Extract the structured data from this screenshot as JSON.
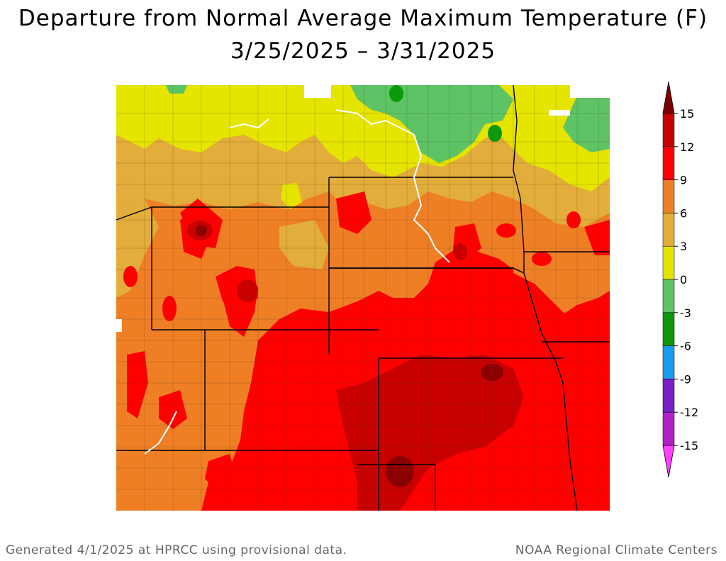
{
  "title": {
    "line1": "Departure from Normal Average Maximum Temperature (F)",
    "line2": "3/25/2025 – 3/31/2025"
  },
  "legend": {
    "ticks": [
      "15",
      "12",
      "9",
      "6",
      "3",
      "0",
      "-3",
      "-6",
      "-9",
      "-12",
      "-15"
    ],
    "bands": [
      {
        "min": 15,
        "max": null,
        "color": "#7a0000"
      },
      {
        "min": 12,
        "max": 15,
        "color": "#c80000"
      },
      {
        "min": 9,
        "max": 12,
        "color": "#ff0000"
      },
      {
        "min": 6,
        "max": 9,
        "color": "#ef7f25"
      },
      {
        "min": 3,
        "max": 6,
        "color": "#e2ad3a"
      },
      {
        "min": 0,
        "max": 3,
        "color": "#e5e500"
      },
      {
        "min": -3,
        "max": 0,
        "color": "#5dc364"
      },
      {
        "min": -6,
        "max": -3,
        "color": "#0a9a0a"
      },
      {
        "min": -9,
        "max": -6,
        "color": "#199cf0"
      },
      {
        "min": -12,
        "max": -9,
        "color": "#7a1fc8"
      },
      {
        "min": -15,
        "max": -12,
        "color": "#b31fc8"
      },
      {
        "min": null,
        "max": -15,
        "color": "#ff40ff"
      }
    ]
  },
  "footer": {
    "left": "Generated 4/1/2025 at HPRCC using provisional data.",
    "right": "NOAA Regional Climate Centers"
  }
}
